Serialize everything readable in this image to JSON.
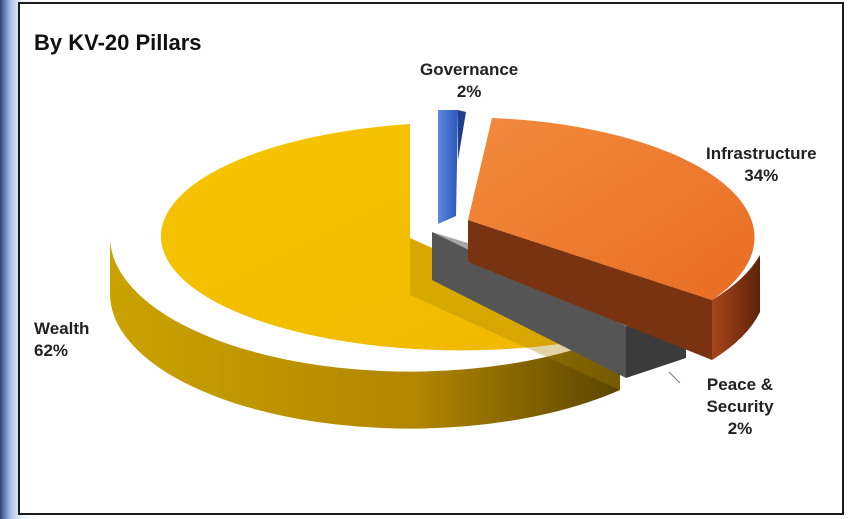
{
  "chart_data": {
    "type": "pie",
    "title": "By KV-20 Pillars",
    "slices": [
      {
        "label": "Governance",
        "value": 2,
        "value_label": "2%",
        "color": "#3d6fd0"
      },
      {
        "label": "Infrastructure",
        "value": 34,
        "value_label": "34%",
        "color": "#ec7a2e"
      },
      {
        "label": "Peace & Security",
        "value": 2,
        "value_label": "2%",
        "color": "#8c8c8c"
      },
      {
        "label": "Wealth",
        "value": 62,
        "value_label": "62%",
        "color": "#f2b705"
      }
    ],
    "style": "3d-exploded"
  }
}
